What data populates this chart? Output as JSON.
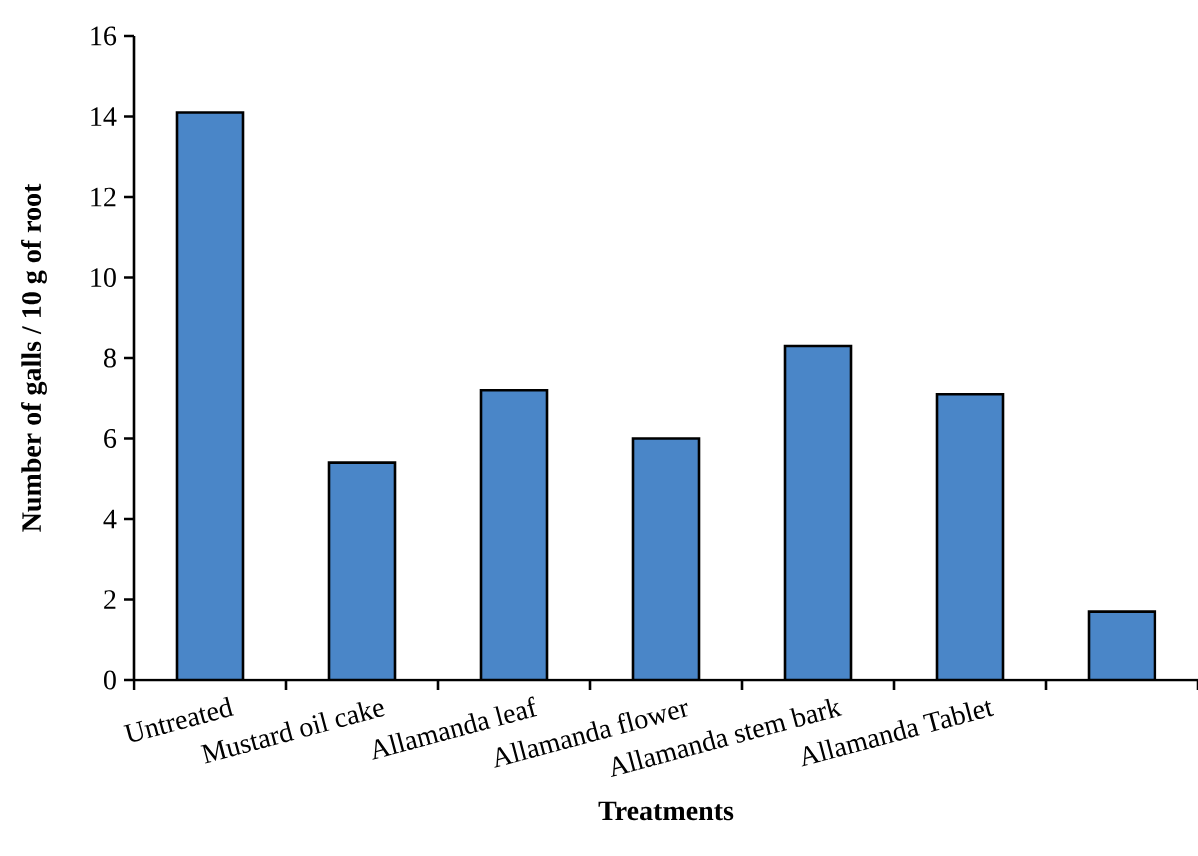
{
  "chart_data": {
    "type": "bar",
    "xlabel": "Treatments",
    "ylabel": "Number of galls / 10 g of root",
    "categories": [
      "Untreated",
      "Mustard oil cake",
      "Allamanda leaf",
      "Allamanda flower",
      "Allamanda stem bark",
      "Allamanda Tablet",
      null
    ],
    "values": [
      14.1,
      5.4,
      7.2,
      6.0,
      8.3,
      7.1,
      1.7
    ],
    "color": "#4a86c8",
    "ylim": [
      0,
      16
    ],
    "yticks": [
      0,
      2,
      4,
      6,
      8,
      10,
      12,
      14,
      16
    ]
  }
}
